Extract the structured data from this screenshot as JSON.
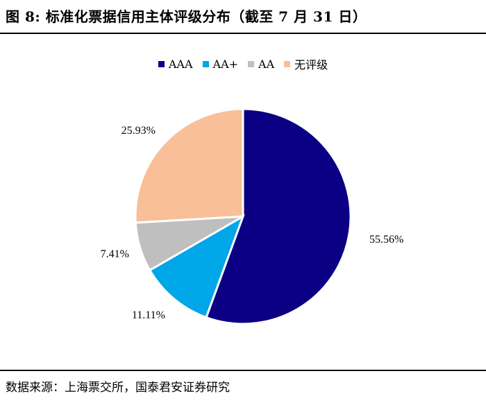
{
  "title": "图 8:  标准化票据信用主体评级分布（截至 7 月 31 日）",
  "source": "数据来源：上海票交所，国泰君安证券研究",
  "colors": {
    "AAA": "#0b0083",
    "AA+": "#00a7e8",
    "AA": "#bfbfbf",
    "无评级": "#f8bf98"
  },
  "chart_data": {
    "type": "pie",
    "title": "图 8:  标准化票据信用主体评级分布（截至 7 月 31 日）",
    "legend_position": "top",
    "categories": [
      "AAA",
      "AA+",
      "AA",
      "无评级"
    ],
    "values": [
      55.56,
      11.11,
      7.41,
      25.93
    ],
    "labels": [
      "55.56%",
      "11.11%",
      "7.41%",
      "25.93%"
    ]
  }
}
